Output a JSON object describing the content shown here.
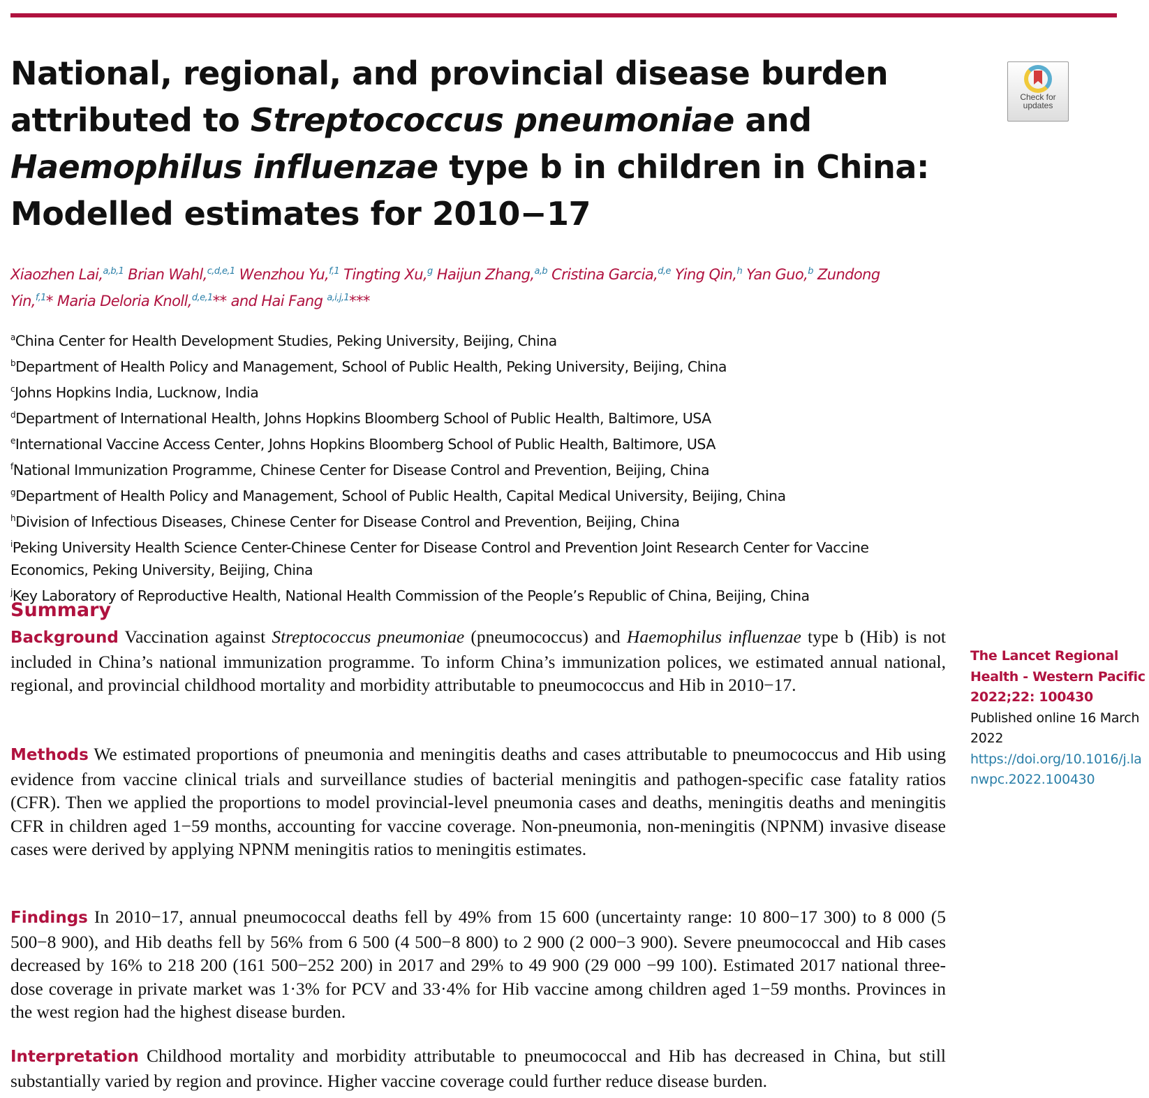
{
  "title": {
    "p1": "National, regional, and provincial disease burden attributed to ",
    "i1": "Streptococcus pneumoniae",
    "p2": " and ",
    "i2": "Haemophilus influenzae",
    "p3": " type b in children in China: Modelled estimates for 2010−17"
  },
  "check_updates": {
    "label1": "Check for",
    "label2": "updates"
  },
  "authors": [
    {
      "name": "Xiaozhen Lai,",
      "sup": "a,b,1"
    },
    {
      "name": " Brian Wahl,",
      "sup": "c,d,e,1"
    },
    {
      "name": " Wenzhou Yu,",
      "sup": "f,1"
    },
    {
      "name": " Tingting Xu,",
      "sup": "g"
    },
    {
      "name": " Haijun Zhang,",
      "sup": "a,b"
    },
    {
      "name": " Cristina Garcia,",
      "sup": "d,e"
    },
    {
      "name": " Ying Qin,",
      "sup": "h"
    },
    {
      "name": " Yan Guo,",
      "sup": "b"
    },
    {
      "name": " Zundong Yin,",
      "sup": "f,1"
    },
    {
      "name": "* Maria Deloria Knoll,",
      "sup": "d,e,1"
    },
    {
      "name": "** and Hai Fang ",
      "sup": "a,i,j,1"
    },
    {
      "name": "***",
      "sup": ""
    }
  ],
  "affiliations": [
    {
      "key": "a",
      "text": "China Center for Health Development Studies, Peking University, Beijing, China"
    },
    {
      "key": "b",
      "text": "Department of Health Policy and Management, School of Public Health, Peking University, Beijing, China"
    },
    {
      "key": "c",
      "text": "Johns Hopkins India, Lucknow, India"
    },
    {
      "key": "d",
      "text": "Department of International Health, Johns Hopkins Bloomberg School of Public Health, Baltimore, USA"
    },
    {
      "key": "e",
      "text": "International Vaccine Access Center, Johns Hopkins Bloomberg School of Public Health, Baltimore, USA"
    },
    {
      "key": "f",
      "text": "National Immunization Programme, Chinese Center for Disease Control and Prevention, Beijing, China"
    },
    {
      "key": "g",
      "text": "Department of Health Policy and Management, School of Public Health, Capital Medical University, Beijing, China"
    },
    {
      "key": "h",
      "text": "Division of Infectious Diseases, Chinese Center for Disease Control and Prevention, Beijing, China"
    },
    {
      "key": "i",
      "text": "Peking University Health Science Center-Chinese Center for Disease Control and Prevention Joint Research Center for Vaccine Economics, Peking University, Beijing, China"
    },
    {
      "key": "j",
      "text": "Key Laboratory of Reproductive Health, National Health Commission of the People’s Republic of China, Beijing, China"
    }
  ],
  "summary": {
    "heading": "Summary",
    "background": {
      "label": "Background",
      "t1": " Vaccination against ",
      "i1": "Streptococcus pneumoniae",
      "t2": " (pneumococcus) and ",
      "i2": "Haemophilus influenzae",
      "t3": " type b (Hib) is not included in China’s national immunization programme. To inform China’s immunization polices, we estimated annual national, regional, and provincial childhood mortality and morbidity attributable to pneumococcus and Hib in 2010−17."
    },
    "methods": {
      "label": "Methods",
      "text": " We estimated proportions of pneumonia and meningitis deaths and cases attributable to pneumococcus and Hib using evidence from vaccine clinical trials and surveillance studies of bacterial meningitis and pathogen-specific case fatality ratios (CFR). Then we applied the proportions to model provincial-level pneumonia cases and deaths, meningitis deaths and meningitis CFR in children aged 1−59 months, accounting for vaccine coverage. Non-pneumonia, non-meningitis (NPNM) invasive disease cases were derived by applying NPNM meningitis ratios to meningitis estimates."
    },
    "findings": {
      "label": "Findings",
      "text": " In 2010−17, annual pneumococcal deaths fell by 49% from 15 600 (uncertainty range: 10 800−17 300) to 8 000 (5 500−8 900), and Hib deaths fell by 56% from 6 500 (4 500−8 800) to 2 900 (2 000−3 900). Severe pneumococcal and Hib cases decreased by 16% to 218 200 (161 500−252 200) in 2017 and 29% to 49 900 (29 000 −99 100). Estimated 2017 national three-dose coverage in private market was 1·3% for PCV and 33·4% for Hib vaccine among children aged 1−59 months. Provinces in the west region had the highest disease burden."
    },
    "interpretation": {
      "label": "Interpretation",
      "text": " Childhood mortality and morbidity attributable to pneumococcal and Hib has decreased in China, but still substantially varied by region and province. Higher vaccine coverage could further reduce disease burden."
    }
  },
  "sidebar": {
    "journal": "The Lancet Regional Health - Western Pacific 2022;22: 100430",
    "published": "Published online 16 March 2022",
    "doi": "https://doi.org/10.1016/j.lanwpc.2022.100430"
  },
  "colors": {
    "accent": "#b0123f",
    "link": "#2a7fa8"
  }
}
